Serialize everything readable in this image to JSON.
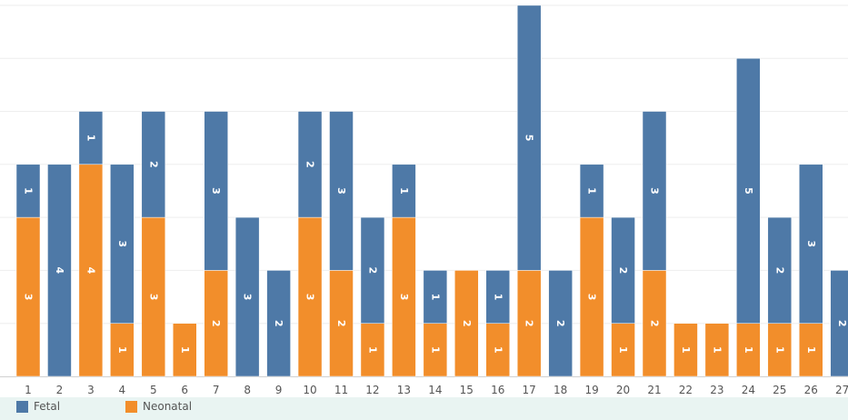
{
  "chart_data": {
    "type": "bar",
    "stacked": true,
    "categories": [
      "1",
      "2",
      "3",
      "4",
      "5",
      "6",
      "7",
      "8",
      "9",
      "10",
      "11",
      "12",
      "13",
      "14",
      "15",
      "16",
      "17",
      "18",
      "19",
      "20",
      "21",
      "22",
      "23",
      "24",
      "25",
      "26",
      "27"
    ],
    "series": [
      {
        "name": "Neonatal",
        "color": "#f28e2b",
        "values": [
          3,
          0,
          4,
          1,
          3,
          1,
          2,
          0,
          0,
          3,
          2,
          1,
          3,
          1,
          2,
          1,
          2,
          0,
          3,
          1,
          2,
          1,
          1,
          1,
          1,
          1,
          0
        ]
      },
      {
        "name": "Fetal",
        "color": "#4e79a7",
        "values": [
          1,
          4,
          1,
          3,
          2,
          0,
          3,
          3,
          2,
          2,
          3,
          2,
          1,
          1,
          0,
          1,
          5,
          2,
          1,
          2,
          3,
          0,
          0,
          5,
          2,
          3,
          2
        ]
      }
    ],
    "ylim": [
      0,
      7
    ],
    "grid": true,
    "legend": "bottom"
  },
  "legend": [
    {
      "label": "Fetal",
      "color": "#4e79a7"
    },
    {
      "label": "Neonatal",
      "color": "#f28e2b"
    }
  ]
}
